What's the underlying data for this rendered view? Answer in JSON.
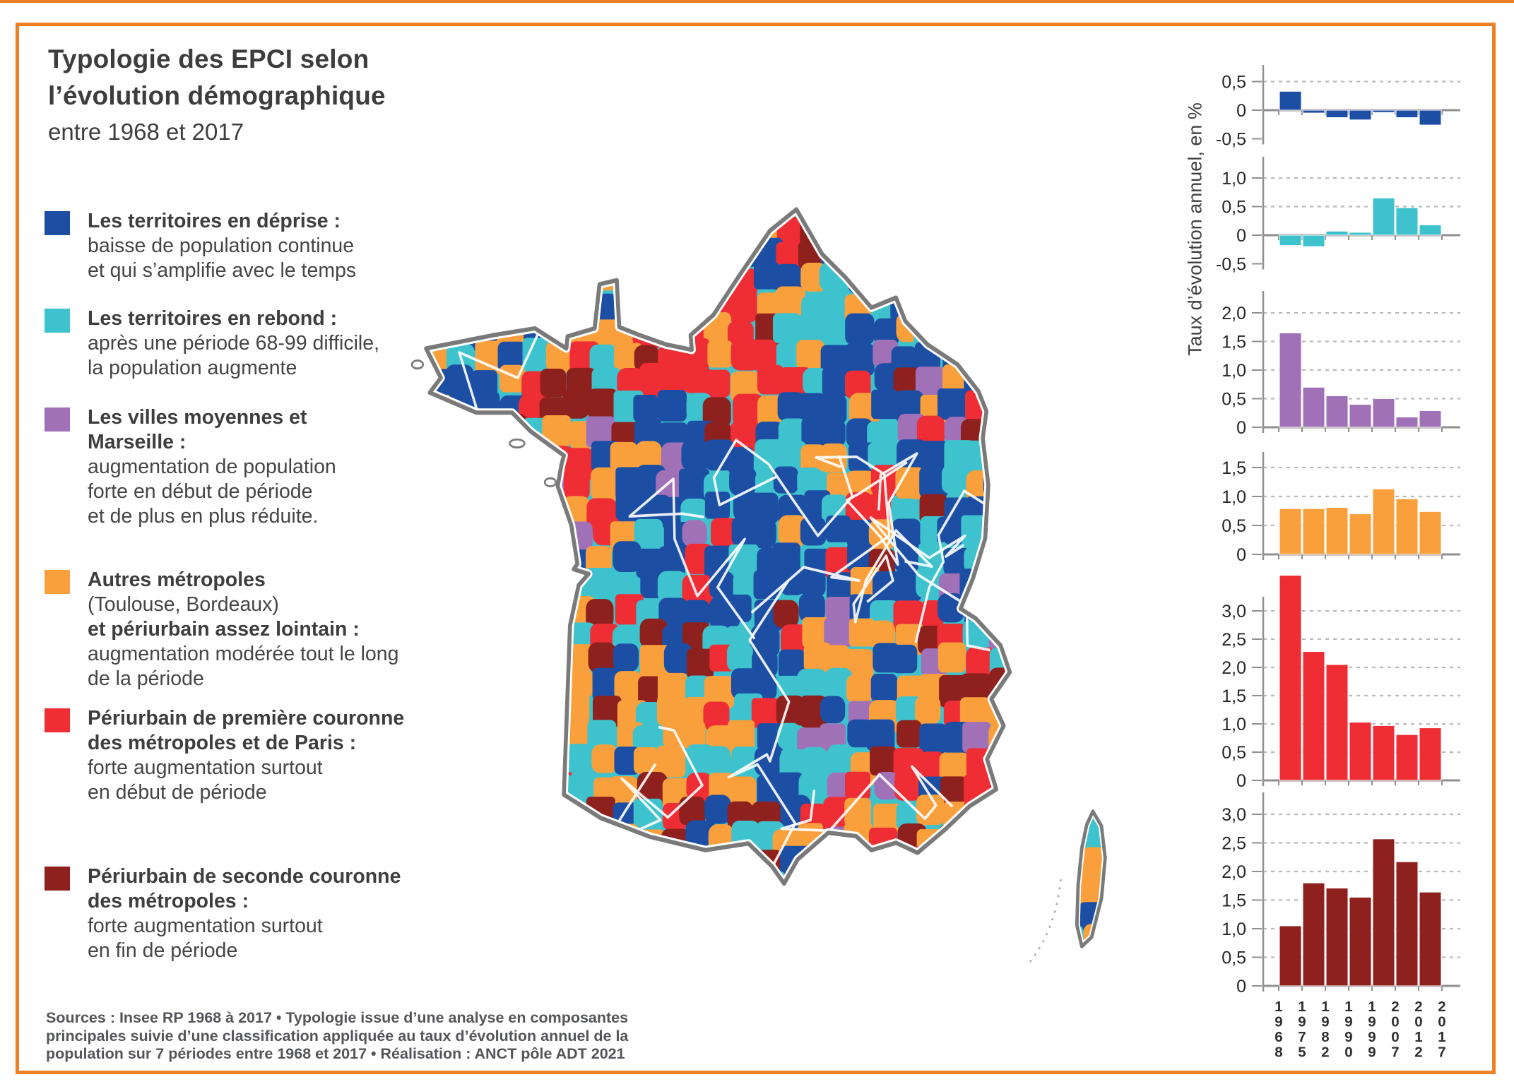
{
  "palette": {
    "blue": "#1c4ea4",
    "cyan": "#3ec2cd",
    "purple": "#a171b7",
    "orange": "#f9a03c",
    "red": "#ee2d35",
    "darkred": "#8e201d",
    "frame_orange": "#f07f26",
    "axis_gray": "#8f8f8f",
    "grid_gray": "#b9b9b9",
    "map_outline_gray": "#7a7a7a",
    "text_dark": "#3d3d3d"
  },
  "title": {
    "line1": "Typologie des EPCI selon",
    "line2": "l’évolution démographique",
    "line3": "entre 1968 et 2017"
  },
  "legend": {
    "items": [
      {
        "color": "blue",
        "lines": [
          {
            "text": "Les territoires en déprise :",
            "bold": true
          },
          {
            "text": "baisse de population continue",
            "bold": false
          },
          {
            "text": "et qui s’amplifie avec le temps",
            "bold": false
          }
        ]
      },
      {
        "color": "cyan",
        "lines": [
          {
            "text": "Les territoires en rebond :",
            "bold": true
          },
          {
            "text": "après une période 68-99 difficile,",
            "bold": false
          },
          {
            "text": "la population augmente",
            "bold": false
          }
        ]
      },
      {
        "color": "purple",
        "lines": [
          {
            "text": "Les villes moyennes et",
            "bold": true
          },
          {
            "text": "Marseille :",
            "bold": true
          },
          {
            "text": "augmentation de population",
            "bold": false
          },
          {
            "text": "forte en début de période",
            "bold": false
          },
          {
            "text": "et de plus en plus réduite.",
            "bold": false
          }
        ]
      },
      {
        "color": "orange",
        "lines": [
          {
            "text": "Autres métropoles",
            "bold": true
          },
          {
            "text": "(Toulouse, Bordeaux)",
            "bold": false
          },
          {
            "text": "et périurbain assez lointain :",
            "bold": true
          },
          {
            "text": "augmentation modérée tout le long",
            "bold": false
          },
          {
            "text": "de la période",
            "bold": false
          }
        ]
      },
      {
        "color": "red",
        "lines": [
          {
            "text": "Périurbain de première couronne",
            "bold": true
          },
          {
            "text": "des métropoles et de Paris :",
            "bold": true
          },
          {
            "text": "forte augmentation surtout",
            "bold": false
          },
          {
            "text": "en début de période",
            "bold": false
          }
        ]
      },
      {
        "color": "darkred",
        "lines": [
          {
            "text": "Périurbain de seconde couronne",
            "bold": true
          },
          {
            "text": "des métropoles :",
            "bold": true
          },
          {
            "text": "forte augmentation surtout",
            "bold": false
          },
          {
            "text": "en fin de période",
            "bold": false
          }
        ]
      }
    ]
  },
  "sources": {
    "line1": "Sources : Insee RP 1968 à 2017 • Typologie issue d’une analyse en composantes",
    "line2": "principales suivie d’une classification appliquée au taux d’évolution annuel de la",
    "line3": "population sur 7 périodes entre 1968 et 2017 • Réalisation : ANCT pôle ADT 2021"
  },
  "charts_axis_label": "Taux d’évolution annuel, en %",
  "x_tick_labels": [
    "1968",
    "1975",
    "1982",
    "1990",
    "1999",
    "2007",
    "2012",
    "2017"
  ],
  "categories": [
    "1968-1975",
    "1975-1982",
    "1982-1990",
    "1990-1999",
    "1999-2007",
    "2007-2012",
    "2012-2017"
  ],
  "chart_data": [
    {
      "type": "bar",
      "name": "Les territoires en déprise",
      "color_key": "blue",
      "values": [
        0.33,
        -0.05,
        -0.13,
        -0.17,
        -0.04,
        -0.13,
        -0.26
      ],
      "ytick_values": [
        0.5,
        0,
        -0.5
      ],
      "ytick_labels": [
        "0,5",
        "0",
        "-0,5"
      ],
      "ylim": [
        -0.6,
        0.6
      ]
    },
    {
      "type": "bar",
      "name": "Les territoires en rebond",
      "color_key": "cyan",
      "values": [
        -0.18,
        -0.2,
        0.07,
        0.05,
        0.65,
        0.48,
        0.18
      ],
      "ytick_values": [
        1.0,
        0.5,
        0,
        -0.5
      ],
      "ytick_labels": [
        "1,0",
        "0,5",
        "0",
        "-0,5"
      ],
      "ylim": [
        -0.6,
        1.35
      ]
    },
    {
      "type": "bar",
      "name": "Les villes moyennes et Marseille",
      "color_key": "purple",
      "values": [
        1.65,
        0.7,
        0.55,
        0.4,
        0.5,
        0.18,
        0.29
      ],
      "ytick_values": [
        2.0,
        1.5,
        1.0,
        0.5,
        0
      ],
      "ytick_labels": [
        "2,0",
        "1,5",
        "1,0",
        "0,5",
        "0"
      ],
      "ylim": [
        0,
        2.4
      ]
    },
    {
      "type": "bar",
      "name": "Autres métropoles et périurbain assez lointain",
      "color_key": "orange",
      "values": [
        0.79,
        0.79,
        0.81,
        0.7,
        1.13,
        0.96,
        0.74
      ],
      "ytick_values": [
        1.5,
        1.0,
        0.5,
        0
      ],
      "ytick_labels": [
        "1,5",
        "1,0",
        "0,5",
        "0"
      ],
      "ylim": [
        0,
        1.8
      ]
    },
    {
      "type": "bar",
      "name": "Périurbain de première couronne des métropoles et de Paris",
      "color_key": "red",
      "values": [
        3.63,
        2.28,
        2.05,
        1.03,
        0.97,
        0.81,
        0.93
      ],
      "ytick_values": [
        3.0,
        2.5,
        2.0,
        1.5,
        1.0,
        0.5,
        0
      ],
      "ytick_labels": [
        "3,0",
        "2,5",
        "2,0",
        "1,5",
        "1,0",
        "0,5",
        "0"
      ],
      "ylim": [
        0,
        3.75
      ]
    },
    {
      "type": "bar",
      "name": "Périurbain de seconde couronne des métropoles",
      "color_key": "darkred",
      "values": [
        1.05,
        1.8,
        1.71,
        1.55,
        2.57,
        2.17,
        1.64
      ],
      "ytick_values": [
        3.0,
        2.5,
        2.0,
        1.5,
        1.0,
        0.5,
        0
      ],
      "ytick_labels": [
        "3,0",
        "2,5",
        "2,0",
        "1,5",
        "1,0",
        "0,5",
        "0"
      ],
      "ylim": [
        0,
        3.4
      ]
    }
  ]
}
